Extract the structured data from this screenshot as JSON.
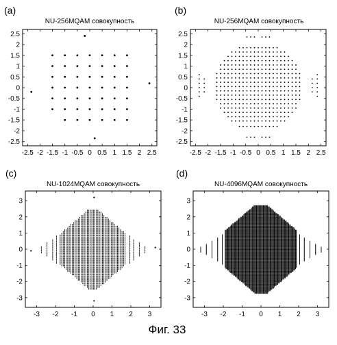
{
  "caption": "Фиг. 33",
  "colors": {
    "background": "#ffffff",
    "ink": "#000000"
  },
  "chart_data": [
    {
      "panel_label": "(a)",
      "type": "scatter",
      "title": "NU-256MQAM совокупность",
      "xlim": [
        -2.7,
        2.7
      ],
      "ylim": [
        -2.7,
        2.7
      ],
      "xticks": [
        -2.5,
        -2,
        -1.5,
        -1,
        -0.5,
        0,
        0.5,
        1,
        1.5,
        2,
        2.5
      ],
      "yticks": [
        -2.5,
        -2,
        -1.5,
        -1,
        -0.5,
        0,
        0.5,
        1,
        1.5,
        2,
        2.5
      ],
      "grid": false,
      "points": [
        [
          -1.5,
          1.5
        ],
        [
          -1,
          1.5
        ],
        [
          -0.5,
          1.5
        ],
        [
          0,
          1.5
        ],
        [
          0.5,
          1.5
        ],
        [
          1,
          1.5
        ],
        [
          1.5,
          1.5
        ],
        [
          -1.5,
          1
        ],
        [
          -1,
          1
        ],
        [
          -0.5,
          1
        ],
        [
          0,
          1
        ],
        [
          0.5,
          1
        ],
        [
          1,
          1
        ],
        [
          1.5,
          1
        ],
        [
          -1.5,
          0.5
        ],
        [
          -1,
          0.5
        ],
        [
          -0.5,
          0.5
        ],
        [
          0,
          0.5
        ],
        [
          0.5,
          0.5
        ],
        [
          1,
          0.5
        ],
        [
          1.5,
          0.5
        ],
        [
          -1.5,
          0
        ],
        [
          -1,
          0
        ],
        [
          -0.5,
          0
        ],
        [
          0,
          0
        ],
        [
          0.5,
          0
        ],
        [
          1,
          0
        ],
        [
          1.5,
          0
        ],
        [
          -1.5,
          -0.5
        ],
        [
          -1,
          -0.5
        ],
        [
          -0.5,
          -0.5
        ],
        [
          0,
          -0.5
        ],
        [
          0.5,
          -0.5
        ],
        [
          1,
          -0.5
        ],
        [
          1.5,
          -0.5
        ],
        [
          -1.5,
          -1
        ],
        [
          -1,
          -1
        ],
        [
          -0.5,
          -1
        ],
        [
          0,
          -1
        ],
        [
          0.5,
          -1
        ],
        [
          1,
          -1
        ],
        [
          1.5,
          -1
        ],
        [
          -1,
          -1.5
        ],
        [
          -0.5,
          -1.5
        ],
        [
          0,
          -1.5
        ],
        [
          0.5,
          -1.5
        ],
        [
          1,
          -1.5
        ],
        [
          1.5,
          -1.5
        ],
        [
          -0.2,
          2.4
        ],
        [
          0.2,
          -2.35
        ],
        [
          -2.35,
          -0.2
        ],
        [
          2.4,
          0.2
        ]
      ]
    },
    {
      "panel_label": "(b)",
      "type": "scatter",
      "title": "NU-256MQAM совокупность",
      "xlim": [
        -2.7,
        2.7
      ],
      "ylim": [
        -2.7,
        2.7
      ],
      "xticks": [
        -2.5,
        -2,
        -1.5,
        -1,
        -0.5,
        0,
        0.5,
        1,
        1.5,
        2,
        2.5
      ],
      "yticks": [
        -2.5,
        -2,
        -1.5,
        -1,
        -0.5,
        0,
        0.5,
        1,
        1.5,
        2,
        2.5
      ],
      "grid": false,
      "rows": [
        {
          "y": 2.35,
          "x": [
            -0.45,
            -0.3,
            -0.15,
            0.15,
            0.3,
            0.45
          ]
        },
        {
          "y": 1.85,
          "x": [
            -0.75,
            -0.6,
            -0.45,
            -0.3,
            -0.15,
            0.0,
            0.15,
            0.3,
            0.45,
            0.6,
            0.75
          ]
        },
        {
          "y": 1.65,
          "x": [
            -1.05,
            -0.9,
            -0.75,
            -0.6,
            -0.45,
            -0.3,
            -0.15,
            0.0,
            0.15,
            0.3,
            0.45,
            0.6,
            0.75,
            0.9,
            1.05
          ]
        },
        {
          "y": 1.45,
          "x": [
            -1.2,
            -1.05,
            -0.9,
            -0.75,
            -0.6,
            -0.45,
            -0.3,
            -0.15,
            0.0,
            0.15,
            0.3,
            0.45,
            0.6,
            0.75,
            0.9,
            1.05,
            1.2
          ]
        },
        {
          "y": 1.25,
          "x": [
            -1.35,
            -1.2,
            -1.05,
            -0.9,
            -0.75,
            -0.6,
            -0.45,
            -0.3,
            -0.15,
            0.0,
            0.15,
            0.3,
            0.45,
            0.6,
            0.75,
            0.9,
            1.05,
            1.2,
            1.35
          ]
        },
        {
          "y": 1.05,
          "x": [
            -1.5,
            -1.35,
            -1.2,
            -1.05,
            -0.9,
            -0.75,
            -0.6,
            -0.45,
            -0.3,
            -0.15,
            0.0,
            0.15,
            0.3,
            0.45,
            0.6,
            0.75,
            0.9,
            1.05,
            1.2,
            1.35,
            1.5
          ]
        },
        {
          "y": 0.85,
          "x": [
            -1.5,
            -1.35,
            -1.2,
            -1.05,
            -0.9,
            -0.75,
            -0.6,
            -0.45,
            -0.3,
            -0.15,
            0.0,
            0.15,
            0.3,
            0.45,
            0.6,
            0.75,
            0.9,
            1.05,
            1.2,
            1.35,
            1.5
          ]
        },
        {
          "y": 0.65,
          "x": [
            -1.65,
            -1.5,
            -1.35,
            -1.2,
            -1.05,
            -0.9,
            -0.75,
            -0.6,
            -0.45,
            -0.3,
            -0.15,
            0.0,
            0.15,
            0.3,
            0.45,
            0.6,
            0.75,
            0.9,
            1.05,
            1.2,
            1.35,
            1.5,
            1.65
          ]
        },
        {
          "y": 0.45,
          "x": [
            -1.65,
            -1.5,
            -1.35,
            -1.2,
            -1.05,
            -0.9,
            -0.75,
            -0.6,
            -0.45,
            -0.3,
            -0.15,
            0.0,
            0.15,
            0.3,
            0.45,
            0.6,
            0.75,
            0.9,
            1.05,
            1.2,
            1.35,
            1.5,
            1.65
          ]
        },
        {
          "y": 0.25,
          "x": [
            -1.65,
            -1.5,
            -1.35,
            -1.2,
            -1.05,
            -0.9,
            -0.75,
            -0.6,
            -0.45,
            -0.3,
            -0.15,
            0.0,
            0.15,
            0.3,
            0.45,
            0.6,
            0.75,
            0.9,
            1.05,
            1.2,
            1.35,
            1.5,
            1.65
          ]
        },
        {
          "y": 0.05,
          "x": [
            -1.65,
            -1.5,
            -1.35,
            -1.2,
            -1.05,
            -0.9,
            -0.75,
            -0.6,
            -0.45,
            -0.3,
            -0.15,
            0.0,
            0.15,
            0.3,
            0.45,
            0.6,
            0.75,
            0.9,
            1.05,
            1.2,
            1.35,
            1.5,
            1.65
          ]
        },
        {
          "y": -0.15,
          "x": [
            -1.65,
            -1.5,
            -1.35,
            -1.2,
            -1.05,
            -0.9,
            -0.75,
            -0.6,
            -0.45,
            -0.3,
            -0.15,
            0.0,
            0.15,
            0.3,
            0.45,
            0.6,
            0.75,
            0.9,
            1.05,
            1.2,
            1.35,
            1.5,
            1.65
          ]
        },
        {
          "y": -0.35,
          "x": [
            -1.65,
            -1.5,
            -1.35,
            -1.2,
            -1.05,
            -0.9,
            -0.75,
            -0.6,
            -0.45,
            -0.3,
            -0.15,
            0.0,
            0.15,
            0.3,
            0.45,
            0.6,
            0.75,
            0.9,
            1.05,
            1.2,
            1.35,
            1.5,
            1.65
          ]
        },
        {
          "y": -0.55,
          "x": [
            -1.65,
            -1.5,
            -1.35,
            -1.2,
            -1.05,
            -0.9,
            -0.75,
            -0.6,
            -0.45,
            -0.3,
            -0.15,
            0.0,
            0.15,
            0.3,
            0.45,
            0.6,
            0.75,
            0.9,
            1.05,
            1.2,
            1.35,
            1.5,
            1.65
          ]
        },
        {
          "y": -0.75,
          "x": [
            -1.5,
            -1.35,
            -1.2,
            -1.05,
            -0.9,
            -0.75,
            -0.6,
            -0.45,
            -0.3,
            -0.15,
            0.0,
            0.15,
            0.3,
            0.45,
            0.6,
            0.75,
            0.9,
            1.05,
            1.2,
            1.35,
            1.5
          ]
        },
        {
          "y": -0.95,
          "x": [
            -1.5,
            -1.35,
            -1.2,
            -1.05,
            -0.9,
            -0.75,
            -0.6,
            -0.45,
            -0.3,
            -0.15,
            0.0,
            0.15,
            0.3,
            0.45,
            0.6,
            0.75,
            0.9,
            1.05,
            1.2,
            1.35,
            1.5
          ]
        },
        {
          "y": -1.15,
          "x": [
            -1.35,
            -1.2,
            -1.05,
            -0.9,
            -0.75,
            -0.6,
            -0.45,
            -0.3,
            -0.15,
            0.0,
            0.15,
            0.3,
            0.45,
            0.6,
            0.75,
            0.9,
            1.05,
            1.2,
            1.35
          ]
        },
        {
          "y": -1.35,
          "x": [
            -1.2,
            -1.05,
            -0.9,
            -0.75,
            -0.6,
            -0.45,
            -0.3,
            -0.15,
            0.0,
            0.15,
            0.3,
            0.45,
            0.6,
            0.75,
            0.9,
            1.05,
            1.2
          ]
        },
        {
          "y": -1.55,
          "x": [
            -1.05,
            -0.9,
            -0.75,
            -0.6,
            -0.45,
            -0.3,
            -0.15,
            0.0,
            0.15,
            0.3,
            0.45,
            0.6,
            0.75,
            0.9,
            1.05
          ]
        },
        {
          "y": -1.8,
          "x": [
            -0.75,
            -0.6,
            -0.45,
            -0.3,
            -0.15,
            0.0,
            0.15,
            0.3,
            0.45,
            0.6,
            0.75
          ]
        },
        {
          "y": -2.3,
          "x": [
            -0.45,
            -0.3,
            -0.15,
            0.15,
            0.3,
            0.45
          ]
        }
      ],
      "cols": [
        {
          "x": -2.35,
          "y": [
            0.6,
            0.4,
            0.2,
            0.0,
            -0.2,
            -0.4
          ]
        },
        {
          "x": -2.15,
          "y": [
            0.4,
            0.2,
            0.0,
            -0.2
          ]
        },
        {
          "x": 2.15,
          "y": [
            0.4,
            0.2,
            0.0,
            -0.2
          ]
        },
        {
          "x": 2.35,
          "y": [
            0.6,
            0.4,
            0.2,
            0.0,
            -0.2,
            -0.4
          ]
        }
      ]
    },
    {
      "panel_label": "(c)",
      "type": "scatter",
      "title": "NU-1024MQAM совокупность",
      "xlim": [
        -3.6,
        3.6
      ],
      "ylim": [
        -3.6,
        3.6
      ],
      "xticks": [
        -3,
        -2,
        -1,
        0,
        1,
        2,
        3
      ],
      "yticks": [
        -3,
        -2,
        -1,
        0,
        1,
        2,
        3
      ],
      "grid": false,
      "model": {
        "kind": "dense-diamond",
        "core_halfwidth": 1.75,
        "core_halfheight": 1.85,
        "core_max": 2.7,
        "step_x": 0.08,
        "step_y": 0.11,
        "tick_len": 0.045,
        "wing_x": [
          1.95,
          2.15,
          2.45,
          2.75
        ],
        "wing_half": [
          0.85,
          0.65,
          0.4,
          0.2
        ],
        "singletons": [
          [
            0.05,
            3.2
          ],
          [
            0.05,
            -3.2
          ],
          [
            -3.3,
            -0.1
          ],
          [
            3.3,
            0.1
          ]
        ]
      }
    },
    {
      "panel_label": "(d)",
      "type": "scatter",
      "title": "NU-4096MQAM совокупность",
      "xlim": [
        -3.6,
        3.6
      ],
      "ylim": [
        -3.6,
        3.6
      ],
      "xticks": [
        -3,
        -2,
        -1,
        0,
        1,
        2,
        3
      ],
      "yticks": [
        -3,
        -2,
        -1,
        0,
        1,
        2,
        3
      ],
      "grid": false,
      "model": {
        "kind": "dense-diamond",
        "core_halfwidth": 1.9,
        "core_halfheight": 2.1,
        "core_max": 3.05,
        "step_x": 0.045,
        "step_y": 0.08,
        "tick_len": 0.06,
        "wing_x": [
          2.05,
          2.3,
          2.6,
          2.9,
          3.2
        ],
        "wing_half": [
          0.9,
          0.7,
          0.5,
          0.3,
          0.15
        ],
        "singletons": []
      }
    }
  ]
}
